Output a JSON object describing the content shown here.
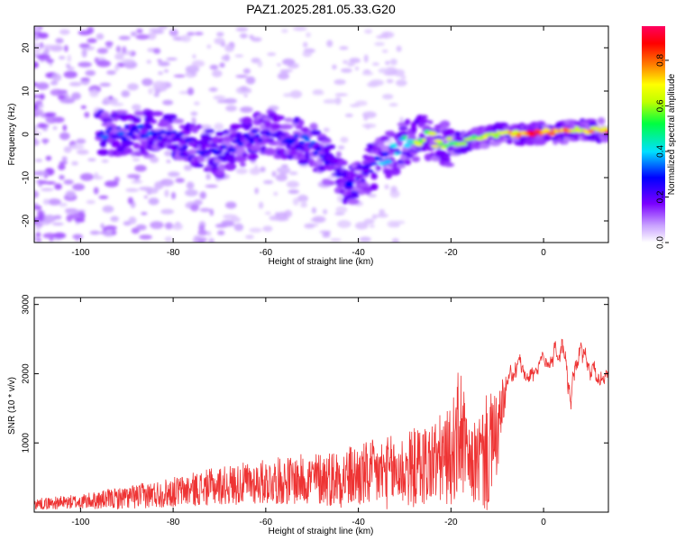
{
  "figure_title": "PAZ1.2025.281.05.33.G20",
  "chart_data": [
    {
      "type": "heatmap",
      "title": "PAZ1.2025.281.05.33.G20",
      "xlabel": "Height of straight line (km)",
      "ylabel": "Frequency (Hz)",
      "xlim": [
        -110,
        14
      ],
      "ylim": [
        -25,
        25
      ],
      "xticks": [
        -100,
        -80,
        -60,
        -40,
        -20,
        0
      ],
      "yticks": [
        -20,
        -10,
        0,
        10,
        20
      ],
      "colorbar": {
        "label": "Normalized spectral amplitude",
        "range": [
          0,
          0.95
        ],
        "ticks": [
          0.0,
          0.2,
          0.4,
          0.6,
          0.8
        ],
        "tick_labels": [
          "0.0",
          "0.2",
          "0.4",
          "0.6",
          "0.8"
        ],
        "colormap": [
          "#ffffff",
          "#c8a0ff",
          "#7a00ff",
          "#0000ff",
          "#00e0ff",
          "#00ff40",
          "#c0ff00",
          "#ffff00",
          "#ff8000",
          "#ff0000",
          "#ff0060"
        ]
      },
      "description_of_signal": [
        {
          "x": -94,
          "y": 0.5,
          "amp": 0.3
        },
        {
          "x": -85,
          "y": 0.3,
          "amp": 0.3
        },
        {
          "x": -80,
          "y": -0.5,
          "amp": 0.25
        },
        {
          "x": -70,
          "y": -4.5,
          "amp": 0.25
        },
        {
          "x": -60,
          "y": 0.5,
          "amp": 0.25
        },
        {
          "x": -50,
          "y": -2.5,
          "amp": 0.3
        },
        {
          "x": -42,
          "y": -11.5,
          "amp": 0.2
        },
        {
          "x": -30,
          "y": -2.0,
          "amp": 0.45
        },
        {
          "x": -26,
          "y": -0.5,
          "amp": 0.65
        },
        {
          "x": -20,
          "y": -2.5,
          "amp": 0.55
        },
        {
          "x": -15,
          "y": -1.0,
          "amp": 0.6
        },
        {
          "x": -10,
          "y": 0.0,
          "amp": 0.7
        },
        {
          "x": -5,
          "y": 0.0,
          "amp": 0.75
        },
        {
          "x": 0,
          "y": 0.5,
          "amp": 0.9
        },
        {
          "x": 4,
          "y": 0.5,
          "amp": 0.85
        },
        {
          "x": 8,
          "y": 1.0,
          "amp": 0.7
        },
        {
          "x": 12,
          "y": 1.0,
          "amp": 0.75
        }
      ]
    },
    {
      "type": "line",
      "xlabel": "Height of straight line (km)",
      "ylabel": "SNR (10 * v/v)",
      "xlim": [
        -110,
        14
      ],
      "ylim": [
        0,
        3100
      ],
      "xticks": [
        -100,
        -80,
        -60,
        -40,
        -20,
        0
      ],
      "yticks": [
        1000,
        2000,
        3000
      ],
      "series": [
        {
          "name": "SNR",
          "color": "#ee3333",
          "envelope_x": [
            -110,
            -100,
            -90,
            -80,
            -70,
            -60,
            -50,
            -40,
            -30,
            -25,
            -20,
            -18,
            -16,
            -12,
            -10,
            -8,
            -5,
            -3,
            0,
            2,
            4,
            6,
            8,
            10,
            12,
            14
          ],
          "envelope_center": [
            120,
            150,
            210,
            290,
            380,
            440,
            480,
            520,
            600,
            700,
            800,
            1200,
            650,
            850,
            1100,
            1800,
            2100,
            2000,
            2200,
            2250,
            2350,
            1600,
            2300,
            2100,
            1900,
            2050
          ],
          "envelope_amp": [
            80,
            110,
            170,
            220,
            280,
            330,
            380,
            480,
            560,
            620,
            700,
            1000,
            500,
            900,
            600,
            300,
            250,
            250,
            200,
            250,
            450,
            550,
            500,
            300,
            250,
            200
          ]
        }
      ]
    }
  ]
}
